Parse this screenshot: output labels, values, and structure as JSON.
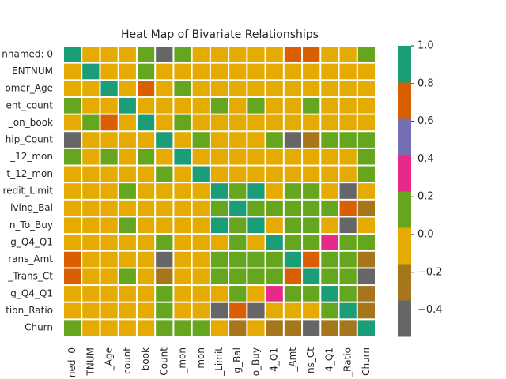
{
  "chart_data": {
    "type": "heatmap",
    "title": "Heat Map of Bivariate Relationships",
    "y_categories": [
      "nnamed: 0",
      "ENTNUM",
      "omer_Age",
      "ent_count",
      "_on_book",
      "hip_Count",
      "_12_mon",
      "t_12_mon",
      "redit_Limit",
      "lving_Bal",
      "n_To_Buy",
      "g_Q4_Q1",
      "rans_Amt",
      "_Trans_Ct",
      "g_Q4_Q1",
      "tion_Ratio",
      "Churn"
    ],
    "x_categories": [
      "ned: 0",
      "TNUM",
      "_Age",
      "count",
      "book",
      "Count",
      "_mon",
      "_mon",
      "_Limit",
      "g_Bal",
      "o_Buy",
      "4_Q1",
      "_Amt",
      "ns_Ct",
      "4_Q1",
      "_Ratio",
      "Churn"
    ],
    "values": [
      [
        1,
        0.01,
        0.0,
        0.0,
        0.12,
        -0.46,
        0.14,
        0.0,
        0.0,
        0.0,
        0.0,
        0.02,
        0.7,
        0.68,
        0.01,
        0.0,
        0.1
      ],
      [
        0.01,
        1,
        0.01,
        0.0,
        0.13,
        0.01,
        0.01,
        0.0,
        0.01,
        0.0,
        0.01,
        0.01,
        -0.02,
        0.0,
        0.0,
        0.0,
        0.03
      ],
      [
        0.0,
        0.01,
        1,
        -0.12,
        0.79,
        -0.01,
        0.05,
        -0.02,
        0.0,
        0.01,
        0.0,
        -0.06,
        -0.05,
        -0.07,
        -0.01,
        0.01,
        0.02
      ],
      [
        0.1,
        0.0,
        -0.12,
        1,
        -0.1,
        -0.04,
        -0.01,
        -0.04,
        0.07,
        0.0,
        0.07,
        -0.04,
        0.03,
        0.05,
        0.01,
        -0.04,
        0.02
      ],
      [
        0.0,
        0.13,
        0.79,
        -0.1,
        1,
        -0.01,
        0.07,
        -0.01,
        0.01,
        0.01,
        0.01,
        -0.05,
        -0.04,
        -0.05,
        -0.01,
        -0.01,
        0.01
      ],
      [
        -0.46,
        0.01,
        -0.01,
        -0.04,
        -0.01,
        1,
        0.0,
        0.06,
        -0.07,
        0.01,
        -0.07,
        0.05,
        -0.4,
        -0.24,
        0.05,
        0.07,
        0.15
      ],
      [
        0.14,
        0.01,
        0.05,
        -0.01,
        0.07,
        0.0,
        1,
        0.03,
        -0.02,
        -0.04,
        -0.02,
        -0.03,
        -0.04,
        -0.04,
        -0.04,
        -0.01,
        0.15
      ],
      [
        0.0,
        0.0,
        -0.02,
        -0.04,
        -0.01,
        0.06,
        0.03,
        1,
        0.02,
        -0.05,
        0.03,
        -0.02,
        -0.11,
        -0.12,
        -0.09,
        -0.06,
        0.2
      ],
      [
        0.0,
        0.01,
        0.0,
        0.07,
        0.01,
        -0.07,
        -0.02,
        0.02,
        1,
        0.05,
        0.996,
        0.0,
        0.17,
        0.08,
        0.0,
        -0.48,
        -0.02
      ],
      [
        0.0,
        0.0,
        0.01,
        0.0,
        0.01,
        0.01,
        -0.04,
        -0.05,
        0.05,
        1,
        0.05,
        0.06,
        0.06,
        0.06,
        0.09,
        0.62,
        -0.26
      ],
      [
        0.0,
        0.01,
        0.0,
        0.07,
        0.01,
        -0.07,
        -0.02,
        0.03,
        0.996,
        0.05,
        1,
        0.0,
        0.17,
        0.07,
        0.01,
        -0.53,
        0.0
      ],
      [
        0.02,
        0.01,
        -0.06,
        -0.04,
        -0.05,
        0.05,
        -0.03,
        -0.02,
        0.0,
        0.06,
        0.0,
        1,
        0.05,
        0.05,
        0.38,
        0.04,
        0.05
      ],
      [
        0.7,
        -0.02,
        -0.05,
        0.03,
        -0.04,
        -0.4,
        -0.04,
        -0.11,
        0.17,
        0.06,
        0.17,
        0.05,
        1,
        0.72,
        0.09,
        0.05,
        -0.17
      ],
      [
        0.68,
        0.0,
        -0.07,
        0.05,
        -0.05,
        -0.24,
        -0.04,
        -0.12,
        0.08,
        0.06,
        0.07,
        0.05,
        0.72,
        1,
        0.11,
        0.05,
        -0.37
      ],
      [
        0.01,
        0.0,
        -0.01,
        0.01,
        -0.01,
        0.05,
        -0.04,
        -0.09,
        0.0,
        0.09,
        0.01,
        0.38,
        0.09,
        0.11,
        1,
        0.07,
        -0.29
      ],
      [
        0.0,
        0.0,
        0.01,
        -0.04,
        -0.01,
        0.07,
        -0.01,
        -0.06,
        -0.48,
        0.62,
        -0.53,
        0.03,
        -0.08,
        0.0,
        0.07,
        1,
        -0.18
      ],
      [
        0.1,
        0.03,
        0.02,
        0.02,
        0.01,
        0.15,
        0.15,
        0.2,
        -0.02,
        -0.26,
        0.0,
        -0.2,
        -0.17,
        -0.37,
        -0.29,
        -0.18,
        1
      ]
    ],
    "colors": [
      "#666666",
      "#a6761d",
      "#e6ab02",
      "#66a61e",
      "#e7298a",
      "#7570b3",
      "#d95f02",
      "#1b9e77"
    ],
    "vlim": [
      -0.54,
      1.0
    ],
    "colorbar_ticks": [
      {
        "value": 1.0,
        "label": "1.0"
      },
      {
        "value": 0.8,
        "label": "0.8"
      },
      {
        "value": 0.6,
        "label": "0.6"
      },
      {
        "value": 0.4,
        "label": "0.4"
      },
      {
        "value": 0.2,
        "label": "0.2"
      },
      {
        "value": 0.0,
        "label": "0.0"
      },
      {
        "value": -0.2,
        "label": "−0.2"
      },
      {
        "value": -0.4,
        "label": "−0.4"
      }
    ]
  }
}
